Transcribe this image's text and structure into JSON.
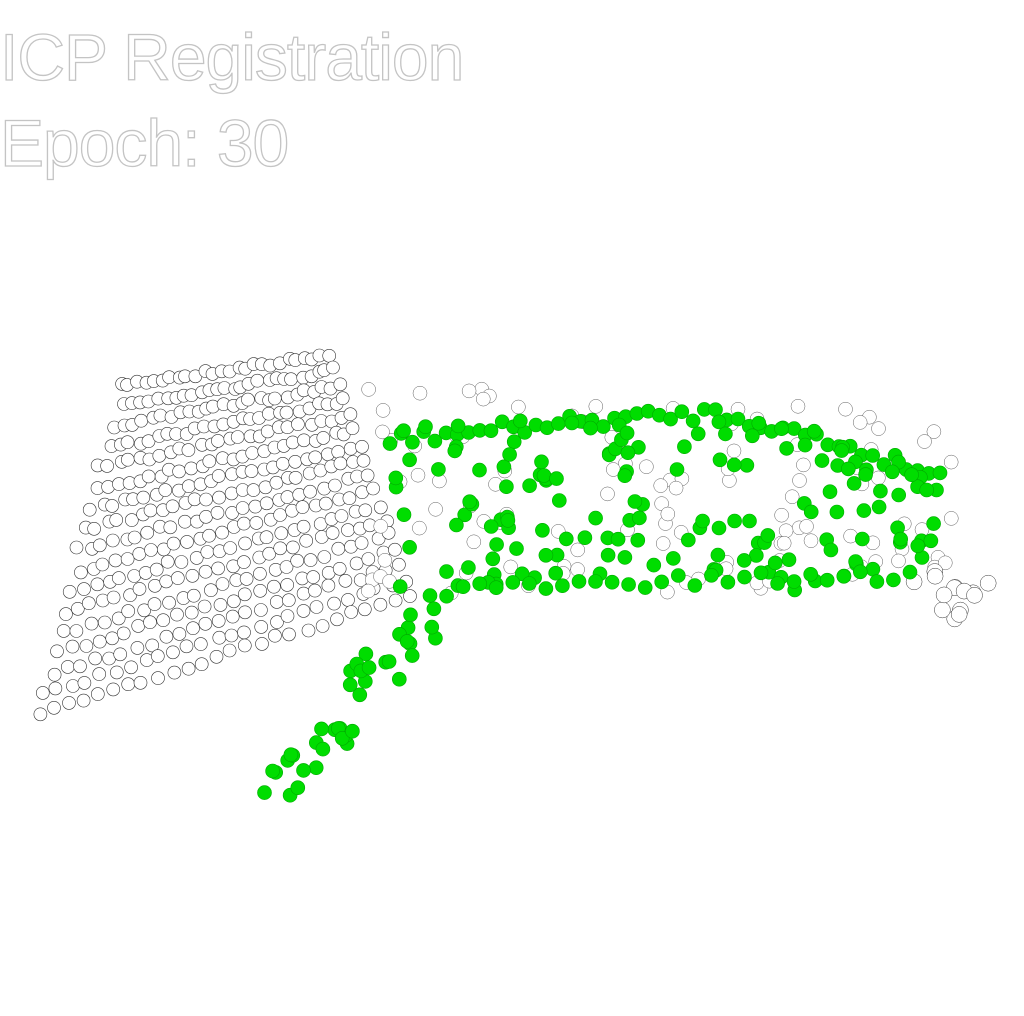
{
  "overlay": {
    "title": "ICP Registration",
    "epoch_label": "Epoch: 30"
  },
  "colors": {
    "background": "#ffffff",
    "source_points": "#00dd00",
    "source_outline": "#00aa00",
    "target_points": "#ffffff",
    "target_outline": "#333333"
  }
}
